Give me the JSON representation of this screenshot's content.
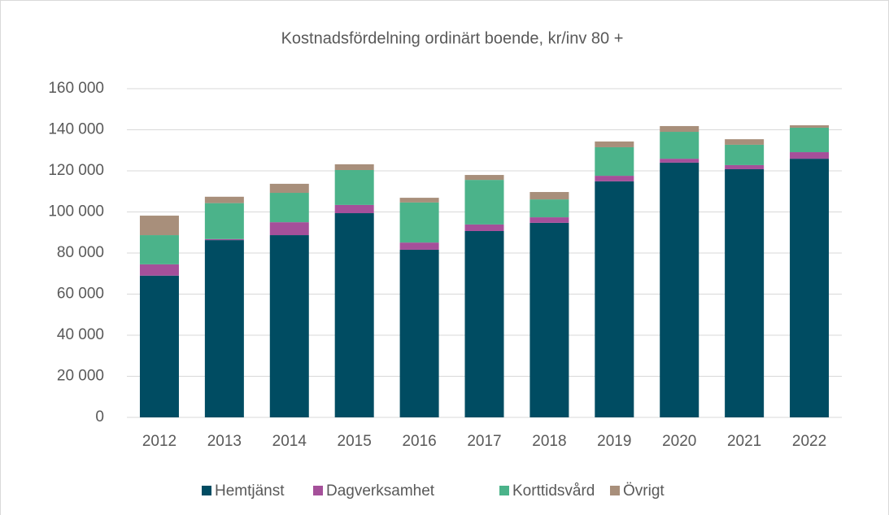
{
  "chart_data": {
    "type": "stacked_bar",
    "title": "Kostnadsfördelning ordinärt boende, kr/inv 80 +",
    "categories": [
      "2012",
      "2013",
      "2014",
      "2015",
      "2016",
      "2017",
      "2018",
      "2019",
      "2020",
      "2021",
      "2022"
    ],
    "series": [
      {
        "name": "Hemtjänst",
        "color": "#004c62",
        "values": [
          69000,
          86300,
          88700,
          99400,
          81600,
          90700,
          94700,
          114900,
          124000,
          120800,
          125900
        ]
      },
      {
        "name": "Dagverksamhet",
        "color": "#a5509a",
        "values": [
          5500,
          500,
          6300,
          4000,
          3500,
          3200,
          2700,
          2700,
          1900,
          2000,
          3200
        ]
      },
      {
        "name": "Korttidsvård",
        "color": "#4bb38a",
        "values": [
          14200,
          17500,
          14300,
          17000,
          19500,
          21700,
          8700,
          13900,
          13100,
          9900,
          11900
        ]
      },
      {
        "name": "Övrigt",
        "color": "#a88f7b",
        "values": [
          9500,
          3100,
          4400,
          2800,
          2300,
          2400,
          3600,
          2800,
          2800,
          2700,
          1200
        ]
      }
    ],
    "ylim": [
      0,
      160000
    ],
    "yticks": [
      0,
      {
        "value": 20000,
        "label": "20 000"
      },
      {
        "value": 40000,
        "label": "40 000"
      },
      {
        "value": 60000,
        "label": "60 000"
      },
      {
        "value": 80000,
        "label": "80 000"
      },
      {
        "value": 100000,
        "label": "100 000"
      },
      {
        "value": 120000,
        "label": "120 000"
      },
      {
        "value": 140000,
        "label": "140 000"
      },
      {
        "value": 160000,
        "label": "160 000"
      }
    ],
    "grid": true,
    "legend": "bottom"
  }
}
